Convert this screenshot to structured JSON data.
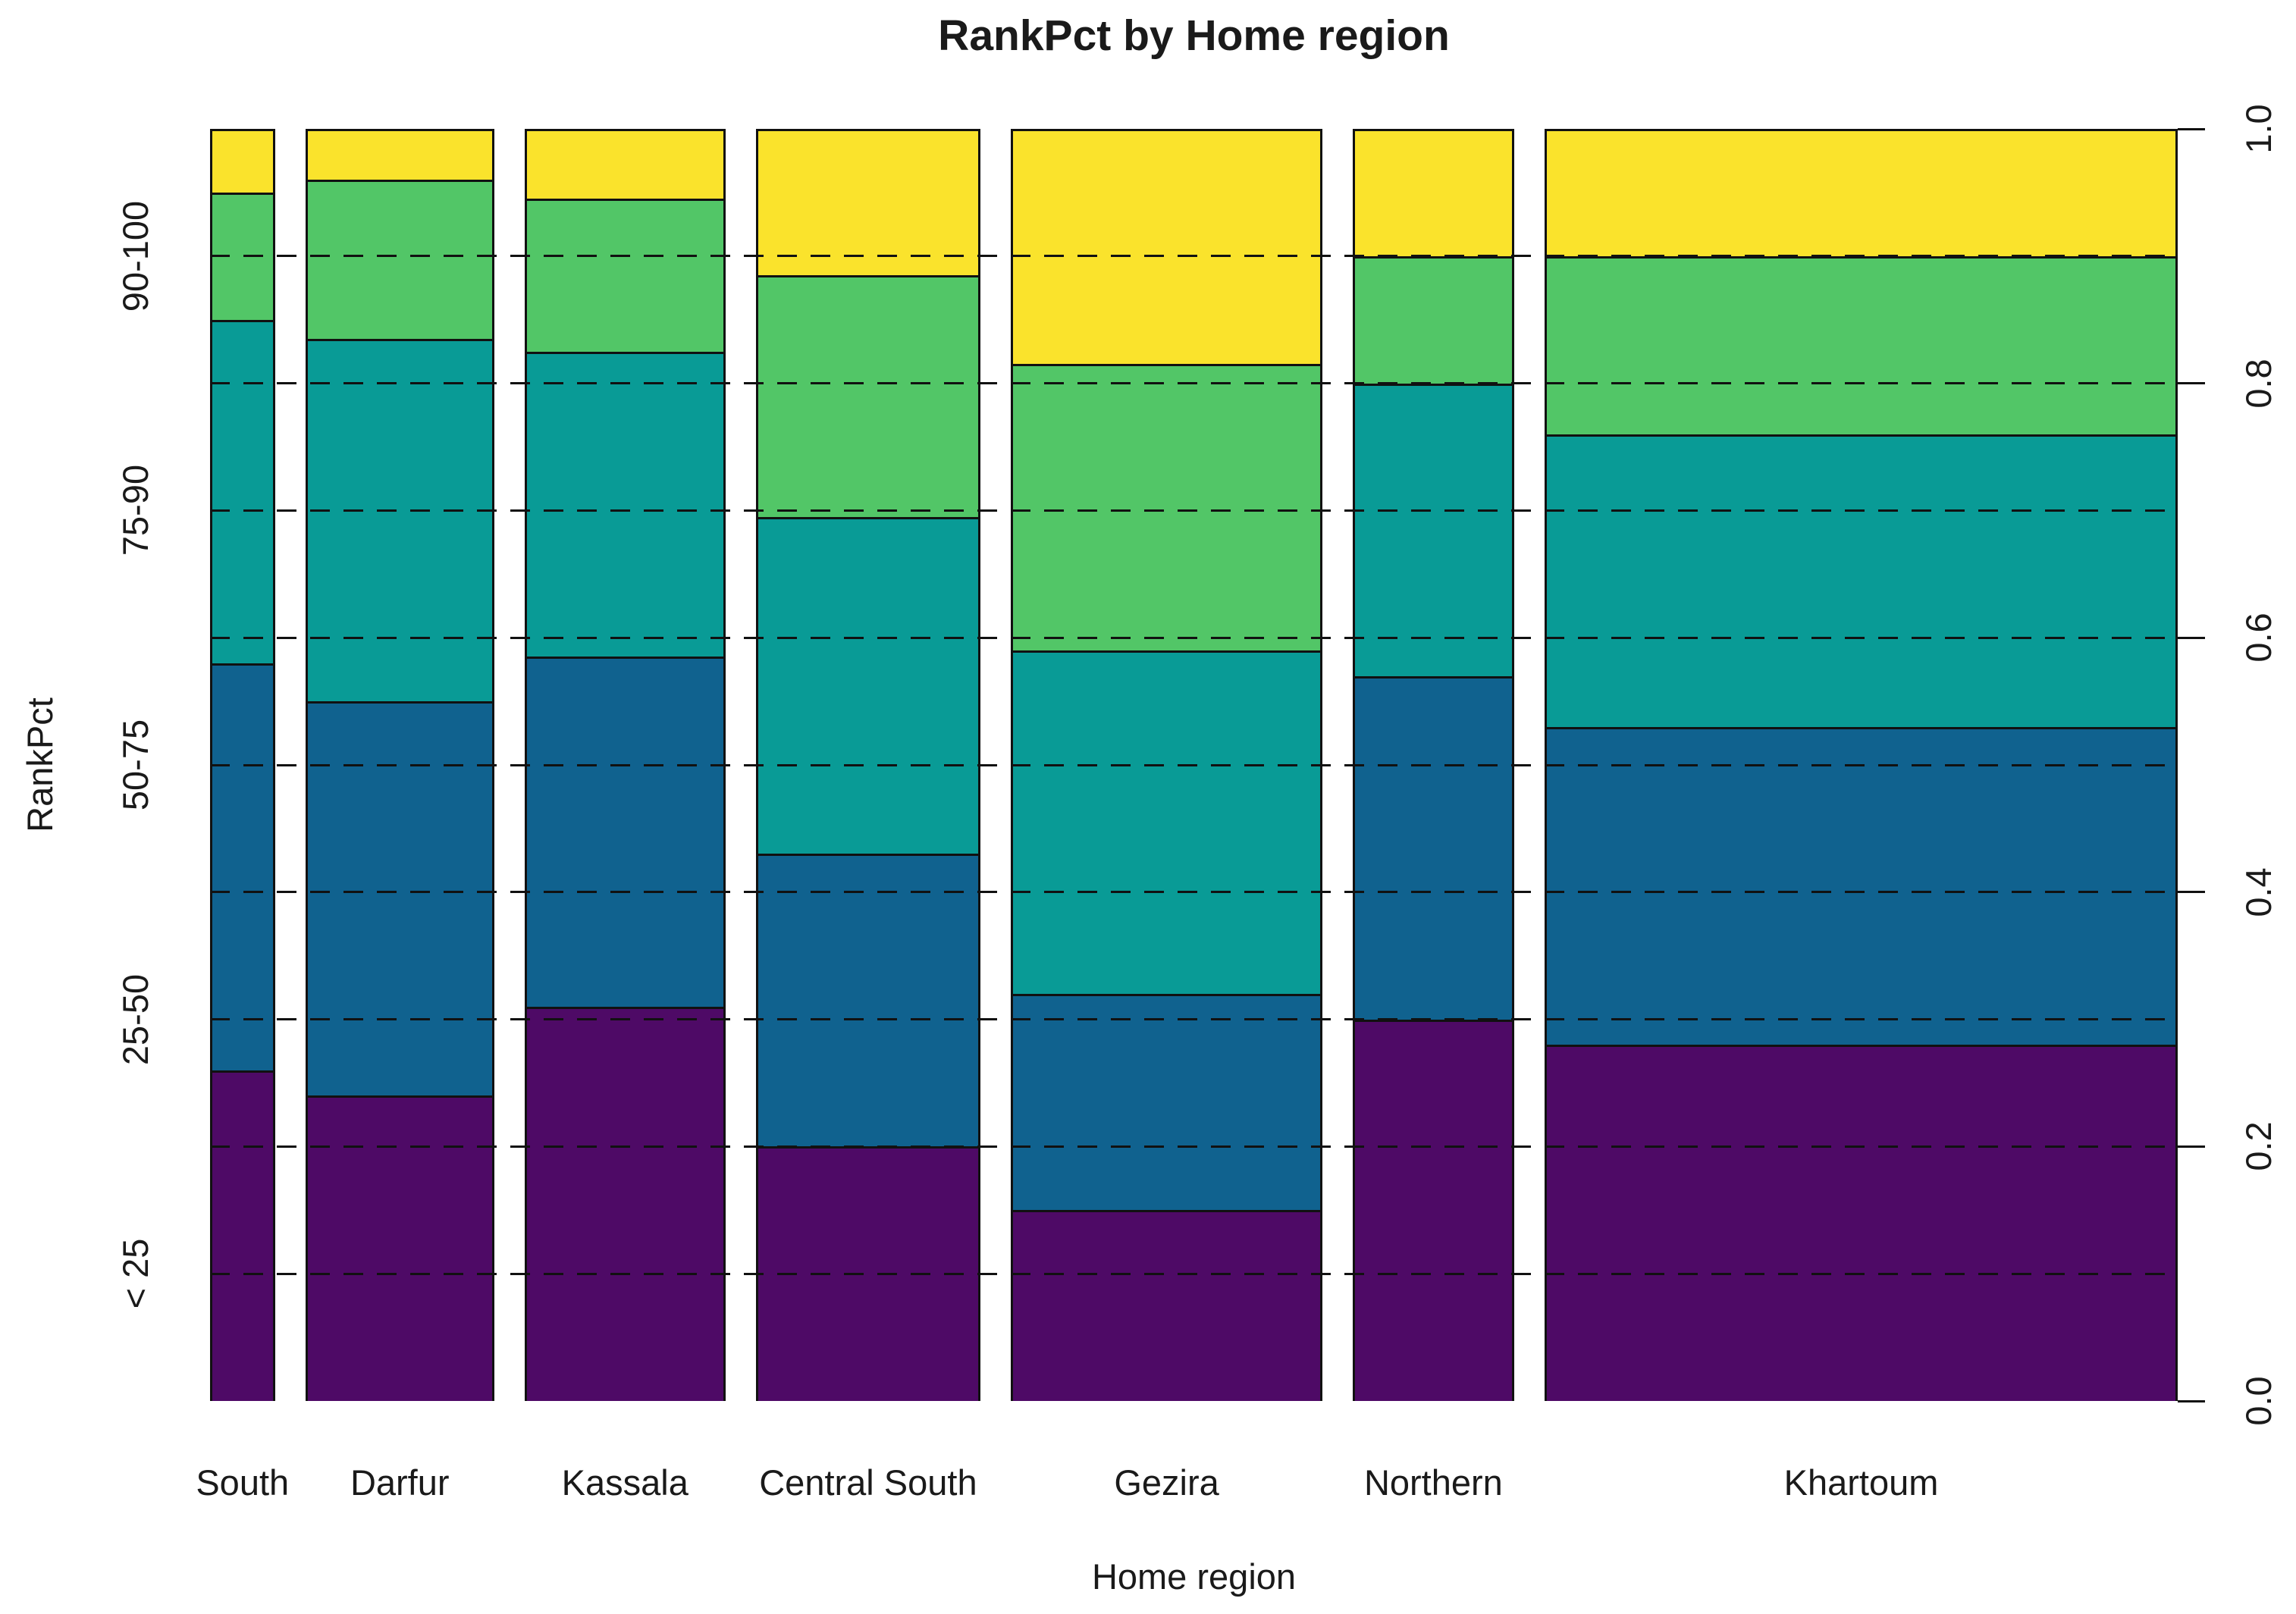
{
  "chart_data": {
    "type": "mosaic",
    "title": "RankPct by Home region",
    "xlabel": "Home region",
    "ylabel": "RankPct",
    "x_categories": [
      "South",
      "Darfur",
      "Kassala",
      "Central South",
      "Gezira",
      "Northern",
      "Khartoum"
    ],
    "x_width_weights": [
      85,
      248,
      263,
      295,
      408,
      212,
      830
    ],
    "y_categories": [
      "< 25",
      "25-50",
      "50-75",
      "75-90",
      "90-100"
    ],
    "y_category_label_positions": [
      0.1,
      0.3,
      0.5,
      0.7,
      0.9
    ],
    "segment_colors": [
      "#4E0A66",
      "#10628F",
      "#099B96",
      "#52C667",
      "#FAE32C"
    ],
    "series": [
      {
        "name": "South",
        "values": [
          0.26,
          0.32,
          0.27,
          0.1,
          0.05
        ]
      },
      {
        "name": "Darfur",
        "values": [
          0.24,
          0.31,
          0.285,
          0.125,
          0.04
        ]
      },
      {
        "name": "Kassala",
        "values": [
          0.31,
          0.275,
          0.24,
          0.12,
          0.055
        ]
      },
      {
        "name": "Central South",
        "values": [
          0.2,
          0.23,
          0.265,
          0.19,
          0.115
        ]
      },
      {
        "name": "Gezira",
        "values": [
          0.15,
          0.17,
          0.27,
          0.225,
          0.185
        ]
      },
      {
        "name": "Northern",
        "values": [
          0.3,
          0.27,
          0.23,
          0.1,
          0.1
        ]
      },
      {
        "name": "Khartoum",
        "values": [
          0.28,
          0.25,
          0.23,
          0.14,
          0.1
        ]
      }
    ],
    "right_axis_tick_labels": [
      "0.0",
      "0.2",
      "0.4",
      "0.6",
      "0.8",
      "1.0"
    ],
    "right_axis_tick_values": [
      0.0,
      0.2,
      0.4,
      0.6,
      0.8,
      1.0
    ],
    "gridline_values": [
      0.1,
      0.2,
      0.3,
      0.4,
      0.5,
      0.6,
      0.7,
      0.8,
      0.9
    ],
    "gridline_style": "dashed",
    "ylim": [
      0.0,
      1.0
    ],
    "legend_position": "none"
  }
}
